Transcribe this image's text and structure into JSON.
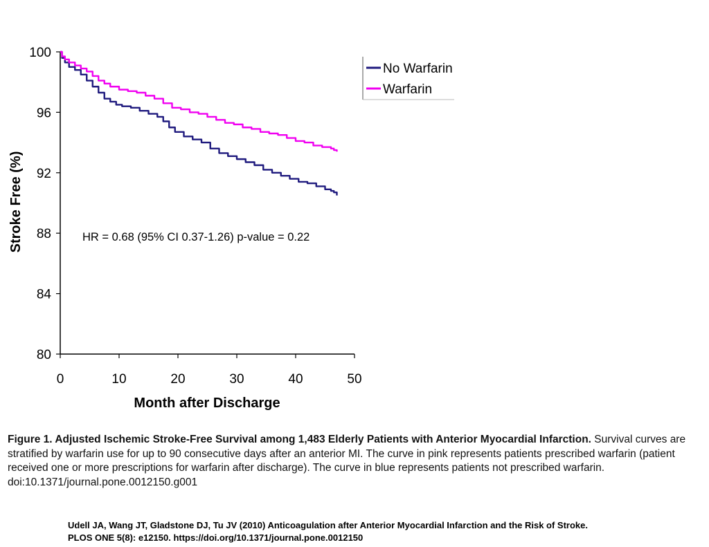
{
  "chart_data": {
    "type": "line",
    "title": "",
    "xlabel": "Month after Discharge",
    "ylabel": "Stroke Free (%)",
    "xlim": [
      0,
      50
    ],
    "ylim": [
      80,
      100
    ],
    "xticks": [
      0,
      10,
      20,
      30,
      40,
      50
    ],
    "yticks": [
      80,
      84,
      88,
      92,
      96,
      100
    ],
    "grid": false,
    "legend_position": "top-right",
    "annotation": "HR = 0.68 (95% CI 0.37-1.26) p-value = 0.22",
    "series": [
      {
        "name": "No Warfarin",
        "color": "#1f1a7e",
        "x": [
          0,
          0.3,
          0.8,
          1.5,
          2.5,
          3.5,
          4.5,
          5.5,
          6.5,
          7.5,
          8.5,
          9.5,
          10.5,
          12,
          13.5,
          15,
          16.5,
          17.5,
          18.5,
          19.5,
          21,
          22.5,
          24,
          25.5,
          27,
          28.5,
          30,
          31.5,
          33,
          34.5,
          36,
          37.5,
          39,
          40.5,
          42,
          43.5,
          45,
          46,
          46.5,
          47
        ],
        "y": [
          100,
          99.6,
          99.3,
          99.0,
          98.8,
          98.5,
          98.1,
          97.7,
          97.3,
          96.9,
          96.7,
          96.5,
          96.4,
          96.3,
          96.1,
          95.9,
          95.7,
          95.4,
          95.0,
          94.7,
          94.4,
          94.2,
          94.0,
          93.6,
          93.3,
          93.1,
          92.9,
          92.7,
          92.5,
          92.2,
          92.0,
          91.8,
          91.6,
          91.4,
          91.3,
          91.1,
          90.9,
          90.8,
          90.7,
          90.5
        ]
      },
      {
        "name": "Warfarin",
        "color": "#f000f0",
        "x": [
          0,
          0.3,
          0.8,
          1.5,
          2.5,
          3.5,
          4.5,
          5.5,
          6.5,
          7.5,
          8.5,
          10,
          11.5,
          13,
          14.5,
          16,
          17.5,
          19,
          20.5,
          22,
          23.5,
          25,
          26.5,
          28,
          29.5,
          31,
          32.5,
          34,
          35.5,
          37,
          38.5,
          40,
          41.5,
          43,
          44.5,
          46,
          46.5,
          47
        ],
        "y": [
          100,
          99.7,
          99.5,
          99.3,
          99.1,
          98.9,
          98.7,
          98.4,
          98.1,
          97.9,
          97.7,
          97.5,
          97.4,
          97.3,
          97.1,
          96.9,
          96.6,
          96.3,
          96.2,
          96.0,
          95.9,
          95.7,
          95.5,
          95.3,
          95.2,
          95.0,
          94.9,
          94.7,
          94.6,
          94.5,
          94.3,
          94.1,
          94.0,
          93.8,
          93.7,
          93.6,
          93.5,
          93.4
        ]
      }
    ]
  },
  "caption": {
    "title": "Figure 1. Adjusted Ischemic Stroke-Free Survival among 1,483 Elderly Patients with Anterior Myocardial Infarction.",
    "body": "Survival curves are stratified by warfarin use for up to 90 consecutive days after an anterior MI. The curve in pink represents patients prescribed warfarin (patient received one or more prescriptions for warfarin after discharge). The curve in blue represents patients not prescribed warfarin.",
    "doi": "doi:10.1371/journal.pone.0012150.g001"
  },
  "citation": {
    "line1": "Udell JA, Wang JT, Gladstone DJ, Tu JV (2010) Anticoagulation after Anterior Myocardial Infarction and the Risk of Stroke.",
    "line2": "PLOS ONE 5(8): e12150. https://doi.org/10.1371/journal.pone.0012150"
  }
}
